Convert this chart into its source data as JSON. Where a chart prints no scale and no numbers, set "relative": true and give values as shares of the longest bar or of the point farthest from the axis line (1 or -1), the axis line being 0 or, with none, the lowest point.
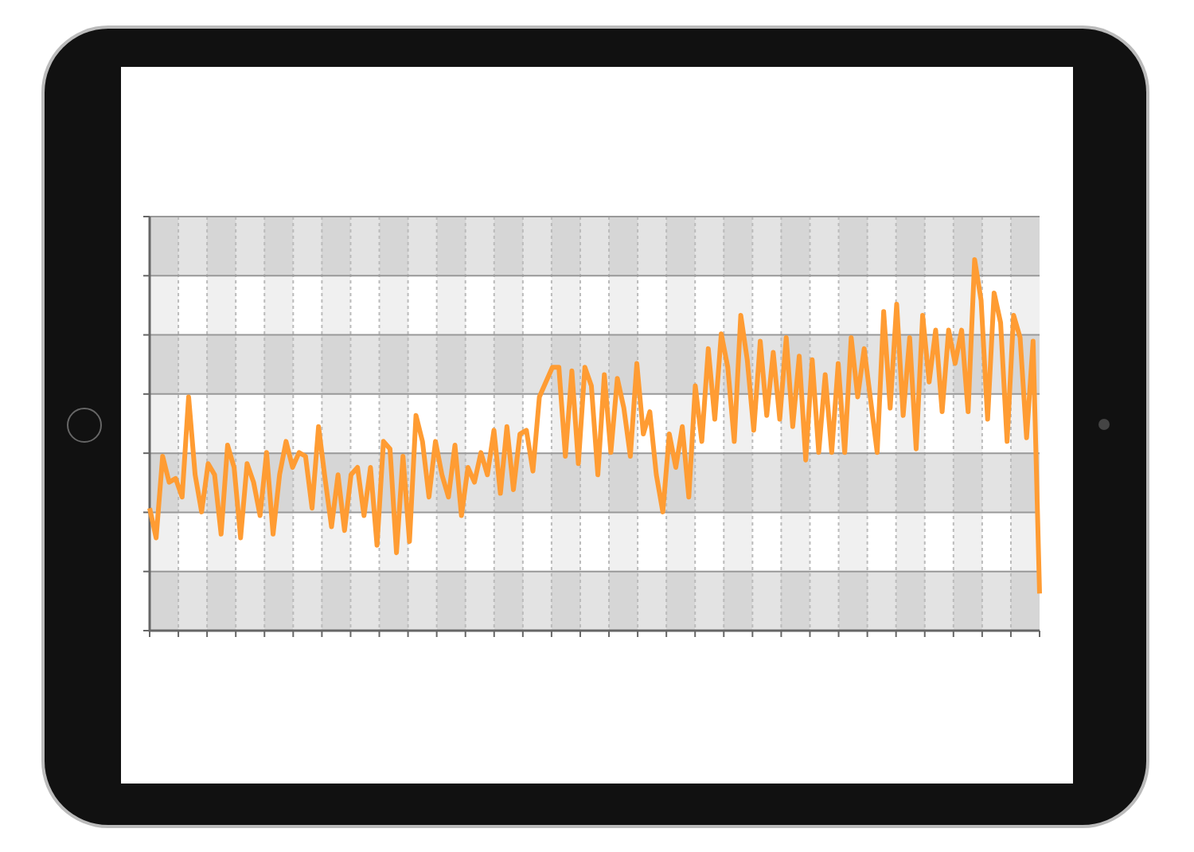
{
  "chart_data": {
    "type": "line",
    "relative": true,
    "grid": true,
    "legend": false,
    "marker": "none",
    "line_style": "solid",
    "categories": [
      null,
      null,
      null,
      null,
      null,
      null,
      null,
      null,
      null,
      null,
      null,
      null,
      null,
      null,
      null,
      null,
      null,
      null,
      null,
      null,
      null,
      null,
      null,
      null,
      null,
      null,
      null,
      null,
      null,
      null,
      null,
      null,
      null,
      null,
      null,
      null,
      null,
      null,
      null,
      null,
      null,
      null,
      null,
      null,
      null,
      null,
      null,
      null,
      null,
      null,
      null,
      null,
      null,
      null,
      null,
      null,
      null,
      null,
      null,
      null,
      null,
      null,
      null,
      null,
      null,
      null,
      null,
      null,
      null,
      null,
      null,
      null,
      null,
      null,
      null,
      null,
      null,
      null,
      null,
      null,
      null,
      null,
      null,
      null,
      null,
      null,
      null,
      null,
      null,
      null,
      null,
      null,
      null,
      null,
      null,
      null,
      null,
      null,
      null,
      null,
      null,
      null,
      null,
      null,
      null,
      null,
      null,
      null,
      null,
      null,
      null,
      null,
      null,
      null,
      null,
      null,
      null,
      null,
      null,
      null,
      null,
      null,
      null,
      null,
      null,
      null,
      null,
      null,
      null,
      null,
      null,
      null,
      null,
      null,
      null,
      null,
      null,
      null
    ],
    "series": [
      {
        "color": "#ff9c33",
        "values": [
          0.33,
          0.25,
          0.47,
          0.4,
          0.41,
          0.36,
          0.63,
          0.42,
          0.32,
          0.45,
          0.42,
          0.26,
          0.5,
          0.44,
          0.25,
          0.45,
          0.4,
          0.31,
          0.48,
          0.26,
          0.42,
          0.51,
          0.44,
          0.48,
          0.47,
          0.33,
          0.55,
          0.41,
          0.28,
          0.42,
          0.27,
          0.42,
          0.44,
          0.31,
          0.44,
          0.23,
          0.51,
          0.49,
          0.21,
          0.47,
          0.24,
          0.58,
          0.51,
          0.36,
          0.51,
          0.42,
          0.36,
          0.5,
          0.31,
          0.44,
          0.4,
          0.48,
          0.42,
          0.54,
          0.37,
          0.55,
          0.38,
          0.53,
          0.54,
          0.43,
          0.63,
          0.67,
          0.71,
          0.71,
          0.47,
          0.7,
          0.45,
          0.71,
          0.66,
          0.42,
          0.69,
          0.48,
          0.68,
          0.6,
          0.47,
          0.72,
          0.53,
          0.59,
          0.42,
          0.32,
          0.53,
          0.44,
          0.55,
          0.36,
          0.66,
          0.51,
          0.76,
          0.57,
          0.8,
          0.71,
          0.51,
          0.85,
          0.73,
          0.54,
          0.78,
          0.58,
          0.75,
          0.57,
          0.79,
          0.55,
          0.74,
          0.46,
          0.73,
          0.48,
          0.69,
          0.48,
          0.72,
          0.48,
          0.79,
          0.63,
          0.76,
          0.62,
          0.48,
          0.86,
          0.6,
          0.88,
          0.58,
          0.79,
          0.49,
          0.85,
          0.67,
          0.81,
          0.59,
          0.81,
          0.72,
          0.81,
          0.59,
          1,
          0.89,
          0.57,
          0.91,
          0.83,
          0.51,
          0.85,
          0.79,
          0.52,
          0.78,
          0.1
        ]
      }
    ]
  }
}
